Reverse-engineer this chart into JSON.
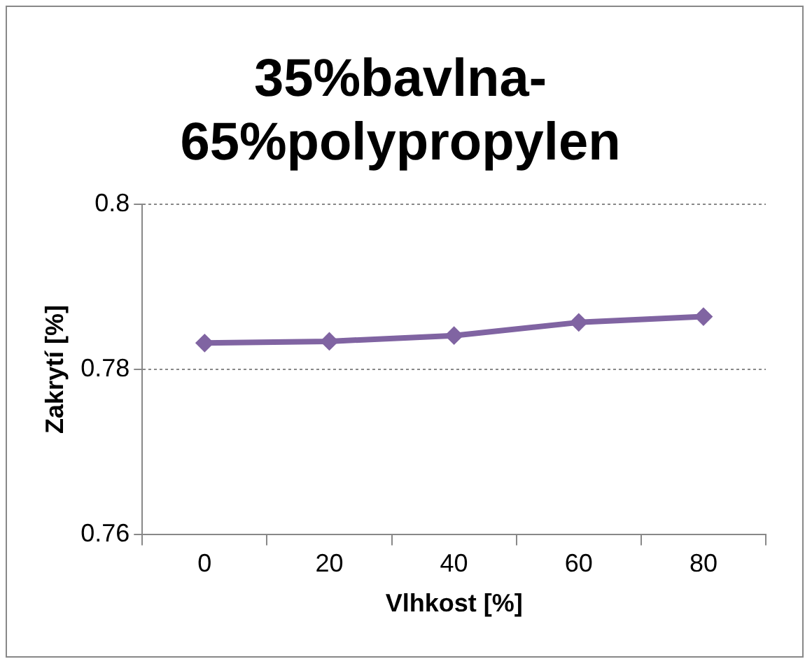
{
  "chart_data": {
    "type": "line",
    "title": "35%bavlna-\n65%polypropylen",
    "xlabel": "Vlhkost [%]",
    "ylabel": "Zakrytí [%]",
    "categories": [
      "0",
      "20",
      "40",
      "60",
      "80"
    ],
    "series": [
      {
        "color": "#8064a2",
        "values": [
          0.7832,
          0.7834,
          0.7841,
          0.7857,
          0.7864
        ]
      }
    ],
    "ylim": [
      0.76,
      0.8
    ],
    "yticks": [
      0.76,
      0.78,
      0.8
    ],
    "grid": "y",
    "legend": false,
    "marker": "diamond",
    "line_style": "solid"
  }
}
